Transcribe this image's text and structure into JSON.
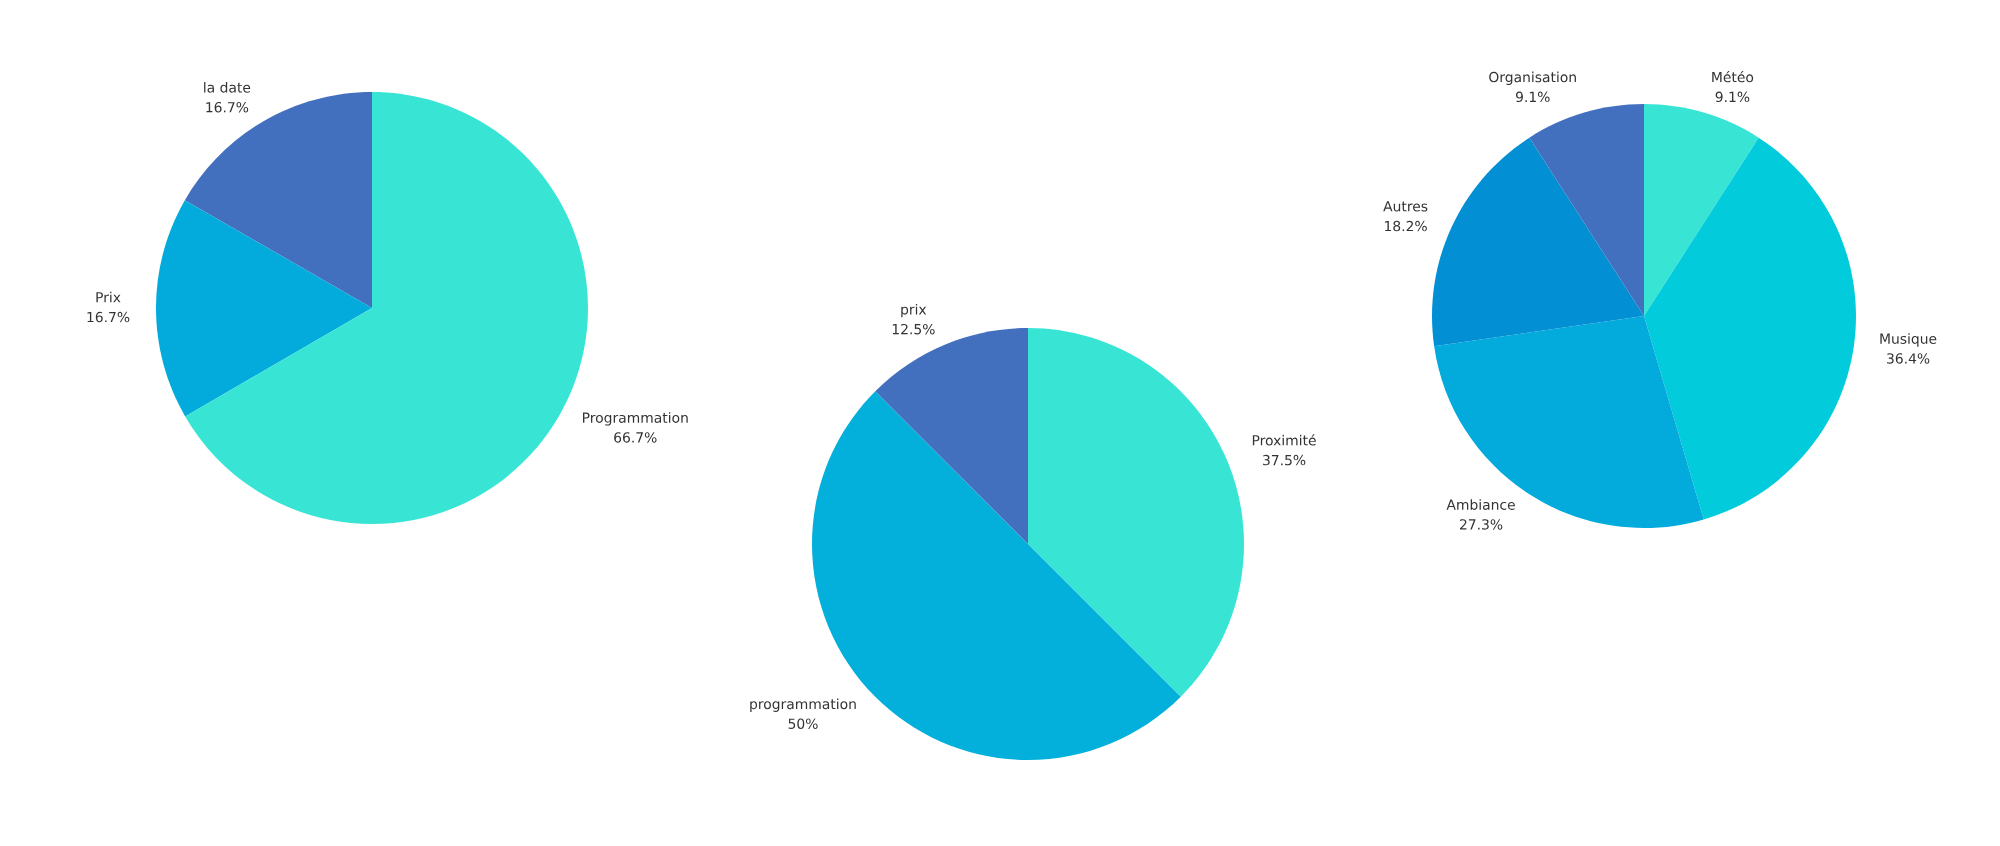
{
  "chart_data": [
    {
      "type": "pie",
      "categories": [
        "la date",
        "Prix",
        "Programmation"
      ],
      "values": [
        16.7,
        16.7,
        66.7
      ],
      "colors": [
        "#436fbf",
        "#03abdc",
        "#38e5d5"
      ],
      "value_labels": [
        "16.7%",
        "16.7%",
        "66.7%"
      ]
    },
    {
      "type": "pie",
      "categories": [
        "Proximité",
        "programmation",
        "prix"
      ],
      "values": [
        37.5,
        50,
        12.5
      ],
      "colors": [
        "#38e5d5",
        "#03b0dc",
        "#436fbf"
      ],
      "value_labels": [
        "37.5%",
        "50%",
        "12.5%"
      ]
    },
    {
      "type": "pie",
      "categories": [
        "Météo",
        "Musique",
        "Ambiance",
        "Autres",
        "Organisation"
      ],
      "values": [
        9.1,
        36.4,
        27.3,
        18.2,
        9.1
      ],
      "colors": [
        "#38e5d5",
        "#02cbdc",
        "#02abdc",
        "#028fd4",
        "#436fbf"
      ],
      "value_labels": [
        "9.1%",
        "36.4%",
        "27.3%",
        "18.2%",
        "9.1%"
      ]
    }
  ]
}
